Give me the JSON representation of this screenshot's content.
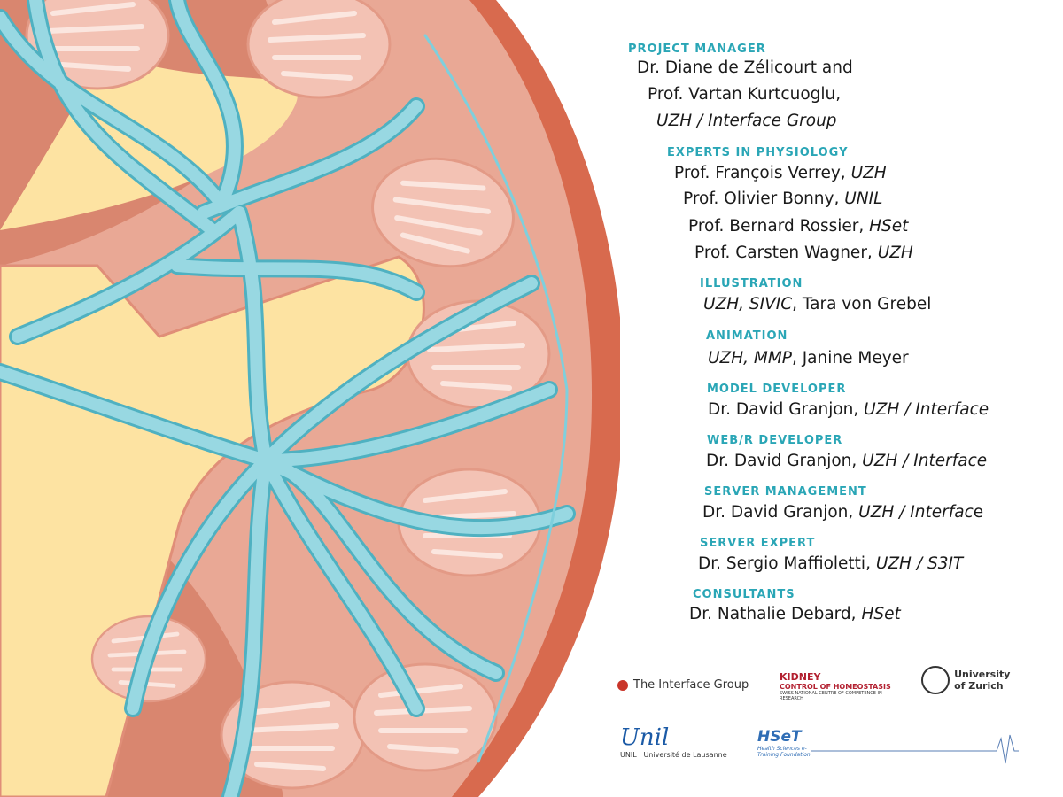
{
  "credits": [
    {
      "heading": "PROJECT MANAGER",
      "lines": [
        [
          {
            "text": "Dr. Diane de Zélicourt and",
            "style": "normal"
          }
        ],
        [
          {
            "text": "Prof. Vartan Kurtcuoglu,",
            "style": "normal"
          }
        ],
        [
          {
            "text": "UZH / Interface Group",
            "style": "italic"
          }
        ]
      ]
    },
    {
      "heading": "EXPERTS IN PHYSIOLOGY",
      "lines": [
        [
          {
            "text": "Prof. François Verrey, ",
            "style": "normal"
          },
          {
            "text": "UZH",
            "style": "italic"
          }
        ],
        [
          {
            "text": "Prof. Olivier Bonny, ",
            "style": "normal"
          },
          {
            "text": "UNIL",
            "style": "italic"
          }
        ],
        [
          {
            "text": "Prof. Bernard Rossier, ",
            "style": "normal"
          },
          {
            "text": "HSet",
            "style": "italic"
          }
        ],
        [
          {
            "text": "Prof. Carsten Wagner, ",
            "style": "normal"
          },
          {
            "text": "UZH",
            "style": "italic"
          }
        ]
      ]
    },
    {
      "heading": "ILLUSTRATION",
      "lines": [
        [
          {
            "text": "UZH, SIVIC",
            "style": "italic"
          },
          {
            "text": ", Tara von Grebel",
            "style": "normal"
          }
        ]
      ]
    },
    {
      "heading": "ANIMATION",
      "lines": [
        [
          {
            "text": "UZH, MMP",
            "style": "italic"
          },
          {
            "text": ", Janine Meyer",
            "style": "normal"
          }
        ]
      ]
    },
    {
      "heading": "MODEL DEVELOPER",
      "lines": [
        [
          {
            "text": "Dr. David Granjon, ",
            "style": "normal"
          },
          {
            "text": "UZH / Interface",
            "style": "italic"
          }
        ]
      ]
    },
    {
      "heading": "WEB/R DEVELOPER",
      "lines": [
        [
          {
            "text": "Dr. David Granjon, ",
            "style": "normal"
          },
          {
            "text": "UZH / Interface",
            "style": "italic"
          }
        ]
      ]
    },
    {
      "heading": "SERVER MANAGEMENT",
      "lines": [
        [
          {
            "text": "Dr. David Granjon, ",
            "style": "normal"
          },
          {
            "text": "UZH / Interfac",
            "style": "italic"
          },
          {
            "text": "e",
            "style": "normal"
          }
        ]
      ]
    },
    {
      "heading": "SERVER EXPERT",
      "lines": [
        [
          {
            "text": "Dr. Sergio Maffioletti, ",
            "style": "normal"
          },
          {
            "text": "UZH / S3IT",
            "style": "italic"
          }
        ]
      ]
    },
    {
      "heading": "CONSULTANTS",
      "lines": [
        [
          {
            "text": "Dr. Nathalie Debard, ",
            "style": "normal"
          },
          {
            "text": "HSet",
            "style": "italic"
          }
        ]
      ]
    }
  ],
  "logos": {
    "interface": "The Interface Group",
    "kidney": {
      "title": "KIDNEY",
      "subtitle": "CONTROL OF HOMEOSTASIS",
      "note": "SWISS NATIONAL CENTRE OF COMPETENCE IN RESEARCH"
    },
    "uzh": "University of Zurich",
    "unil": {
      "mark": "Unil",
      "name": "UNIL | Université de Lausanne"
    },
    "hset": {
      "mark": "HSeT",
      "name": "Health Sciences e-Training Foundation"
    }
  }
}
